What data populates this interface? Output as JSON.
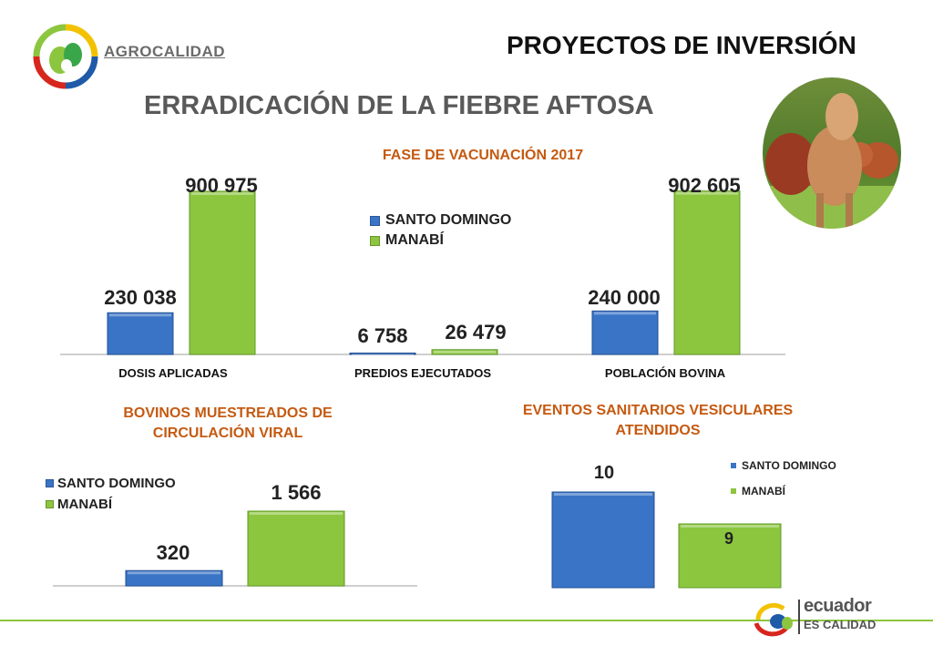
{
  "header": {
    "logo_text": "AGROCALIDAD",
    "title": "PROYECTOS DE INVERSIÓN",
    "main_title": "ERRADICACIÓN DE LA FIEBRE AFTOSA",
    "footer_logo_line1": "ecuador",
    "footer_logo_line2": "ES CALIDAD"
  },
  "colors": {
    "santo_domingo": "#3a74c6",
    "manabi": "#8cc63f",
    "title_accent": "#c55a11"
  },
  "chart_data": [
    {
      "type": "bar",
      "title": "FASE DE VACUNACIÓN 2017",
      "categories": [
        "DOSIS APLICADAS",
        "PREDIOS EJECUTADOS",
        "POBLACIÓN BOVINA"
      ],
      "series": [
        {
          "name": "SANTO DOMINGO",
          "values": [
            230038,
            6758,
            240000
          ],
          "labels": [
            "230 038",
            "6 758",
            "240 000"
          ]
        },
        {
          "name": "MANABÍ",
          "values": [
            900975,
            26479,
            902605
          ],
          "labels": [
            "900 975",
            "26 479",
            "902 605"
          ]
        }
      ],
      "ylim": [
        0,
        1000000
      ],
      "legend": "top-center",
      "grid": false
    },
    {
      "type": "bar",
      "title": "BOVINOS MUESTREADOS DE CIRCULACIÓN VIRAL",
      "categories": [
        ""
      ],
      "series": [
        {
          "name": "SANTO DOMINGO",
          "values": [
            320
          ],
          "labels": [
            "320"
          ]
        },
        {
          "name": "MANABÍ",
          "values": [
            1566
          ],
          "labels": [
            "1 566"
          ]
        }
      ],
      "ylim": [
        0,
        1800
      ],
      "legend": "top-left",
      "grid": false
    },
    {
      "type": "bar",
      "title": "EVENTOS SANITARIOS VESICULARES ATENDIDOS",
      "categories": [
        ""
      ],
      "series": [
        {
          "name": "SANTO DOMINGO",
          "values": [
            10
          ],
          "labels": [
            "10"
          ]
        },
        {
          "name": "MANABÍ",
          "values": [
            9
          ],
          "labels": [
            "9"
          ]
        }
      ],
      "ylim": [
        7,
        10.5
      ],
      "legend": "right",
      "grid": false
    }
  ]
}
